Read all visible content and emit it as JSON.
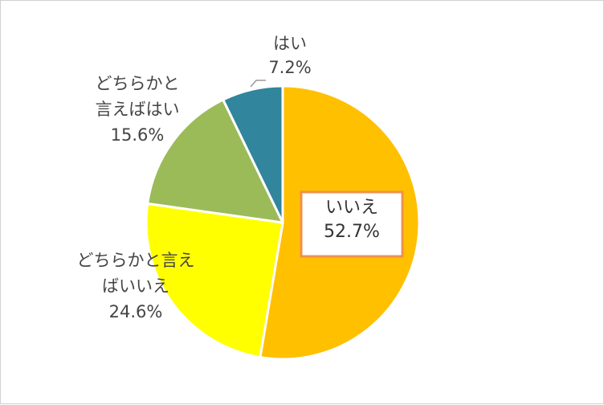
{
  "chart_data": {
    "type": "pie",
    "title": "",
    "legend": "none",
    "slices": [
      {
        "lines": [
          "いいえ",
          "52.7%"
        ],
        "value": 52.7,
        "color": "#FFC000",
        "label_box_color": "#F0914C"
      },
      {
        "lines": [
          "どちらかと言え",
          "ばいいえ",
          "24.6%"
        ],
        "value": 24.6,
        "color": "#FFFF00"
      },
      {
        "lines": [
          "どちらかと",
          "言えばはい",
          "15.6%"
        ],
        "value": 15.6,
        "color": "#9BBB59"
      },
      {
        "lines": [
          "はい",
          "7.2%"
        ],
        "value": 7.2,
        "color": "#31859C"
      }
    ]
  }
}
